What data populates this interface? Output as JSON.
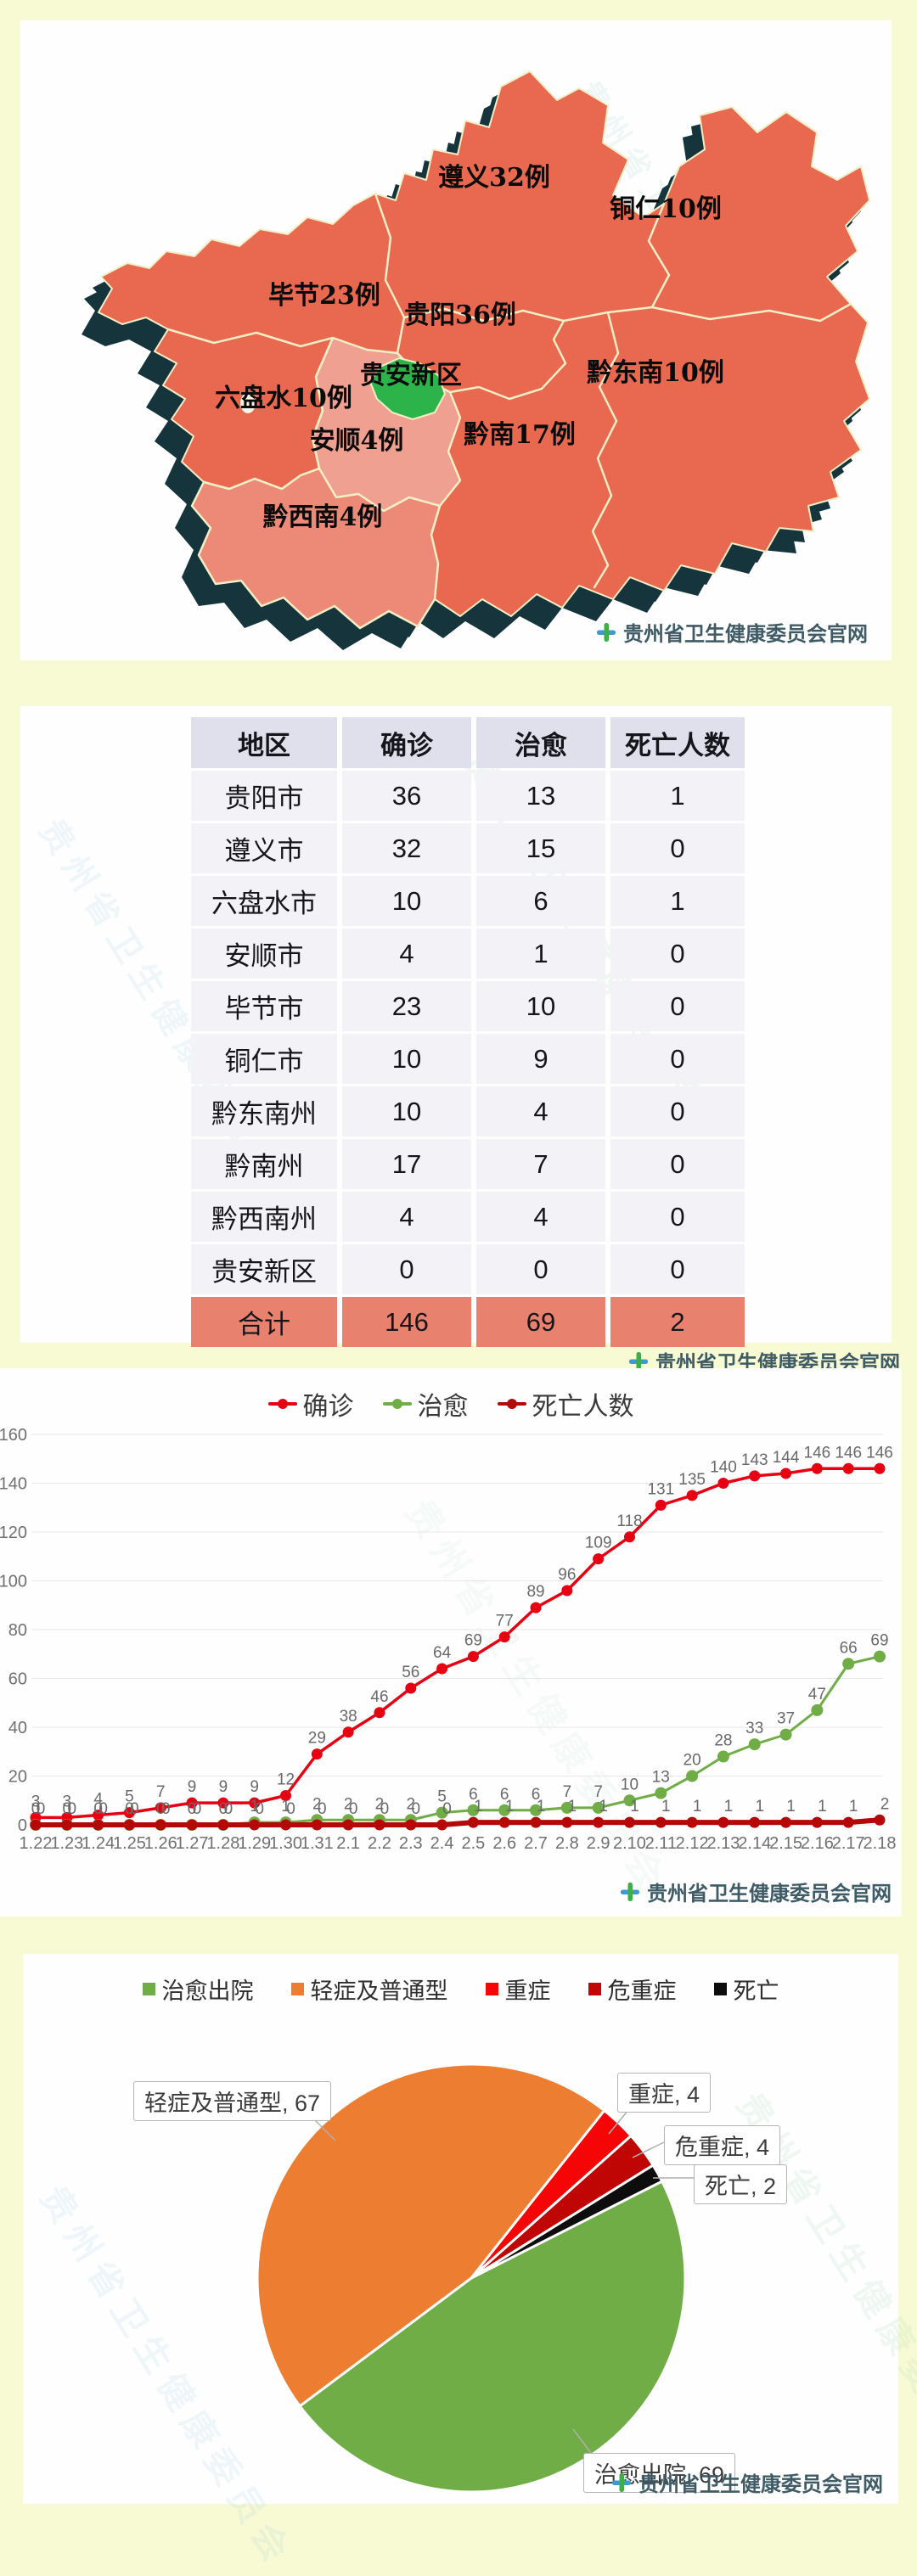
{
  "watermark": {
    "text": "贵州省卫生健康委员会官网",
    "bg_text": "贵州省卫生健康委员会",
    "icon_green": "#3fae49",
    "icon_blue": "#3d9ad1"
  },
  "map": {
    "labels": [
      {
        "region": "zunyi",
        "text": "遵义32例",
        "cases": 32
      },
      {
        "region": "tongren",
        "text": "铜仁10例",
        "cases": 10
      },
      {
        "region": "bijie",
        "text": "毕节23例",
        "cases": 23
      },
      {
        "region": "guiyang",
        "text": "贵阳36例",
        "cases": 36
      },
      {
        "region": "qiandongnan",
        "text": "黔东南10例",
        "cases": 10
      },
      {
        "region": "guian",
        "text": "贵安新区",
        "cases": 0
      },
      {
        "region": "liupanshui",
        "text": "六盘水10例",
        "cases": 10
      },
      {
        "region": "anshun",
        "text": "安顺4例",
        "cases": 4
      },
      {
        "region": "qiannan",
        "text": "黔南17例",
        "cases": 17
      },
      {
        "region": "qianxinan",
        "text": "黔西南4例",
        "cases": 4
      }
    ],
    "colors": {
      "high": "#e8694f",
      "anshun_low": "#efa090",
      "qianxinan_low": "#ec8a77",
      "guian_green": "#2cb34a",
      "extrude": "#16343c",
      "border": "#f2eec6"
    }
  },
  "table": {
    "headers": [
      "地区",
      "确诊",
      "治愈",
      "死亡人数"
    ],
    "rows": [
      [
        "贵阳市",
        "36",
        "13",
        "1"
      ],
      [
        "遵义市",
        "32",
        "15",
        "0"
      ],
      [
        "六盘水市",
        "10",
        "6",
        "1"
      ],
      [
        "安顺市",
        "4",
        "1",
        "0"
      ],
      [
        "毕节市",
        "23",
        "10",
        "0"
      ],
      [
        "铜仁市",
        "10",
        "9",
        "0"
      ],
      [
        "黔东南州",
        "10",
        "4",
        "0"
      ],
      [
        "黔南州",
        "17",
        "7",
        "0"
      ],
      [
        "黔西南州",
        "4",
        "4",
        "0"
      ],
      [
        "贵安新区",
        "0",
        "0",
        "0"
      ]
    ],
    "total": [
      "合计",
      "146",
      "69",
      "2"
    ]
  },
  "chart_data": [
    {
      "type": "line",
      "title": "",
      "categories": [
        "1.22",
        "1.23",
        "1.24",
        "1.25",
        "1.26",
        "1.27",
        "1.28",
        "1.29",
        "1.30",
        "1.31",
        "2.1",
        "2.2",
        "2.3",
        "2.4",
        "2.5",
        "2.6",
        "2.7",
        "2.8",
        "2.9",
        "2.10",
        "2.11",
        "2.12",
        "2.13",
        "2.14",
        "2.15",
        "2.16",
        "2.17",
        "2.18"
      ],
      "series": [
        {
          "name": "确诊",
          "color": "#e60012",
          "values": [
            3,
            3,
            4,
            5,
            7,
            9,
            9,
            9,
            12,
            29,
            38,
            46,
            56,
            64,
            69,
            77,
            89,
            96,
            109,
            118,
            131,
            135,
            140,
            143,
            144,
            146,
            146,
            146
          ]
        },
        {
          "name": "治愈",
          "color": "#71ad47",
          "values": [
            0,
            0,
            0,
            0,
            0,
            0,
            0,
            1,
            1,
            2,
            2,
            2,
            2,
            5,
            6,
            6,
            6,
            7,
            7,
            10,
            13,
            20,
            28,
            33,
            37,
            47,
            66,
            69
          ]
        },
        {
          "name": "死亡人数",
          "color": "#b50909",
          "values": [
            0,
            0,
            0,
            0,
            0,
            0,
            0,
            0,
            0,
            0,
            0,
            0,
            0,
            0,
            1,
            1,
            1,
            1,
            1,
            1,
            1,
            1,
            1,
            1,
            1,
            1,
            1,
            2
          ]
        }
      ],
      "ylim": [
        0,
        160
      ],
      "yticks": [
        0,
        20,
        40,
        60,
        80,
        100,
        120,
        140,
        160
      ],
      "grid": true,
      "legend_position": "top"
    },
    {
      "type": "pie",
      "title": "",
      "series": [
        {
          "name": "治愈出院",
          "value": 69,
          "color": "#70ad47",
          "label": "治愈出院, 69"
        },
        {
          "name": "轻症及普通型",
          "value": 67,
          "color": "#ed7d31",
          "label": "轻症及普通型, 67"
        },
        {
          "name": "重症",
          "value": 4,
          "color": "#f50505",
          "label": "重症, 4"
        },
        {
          "name": "危重症",
          "value": 4,
          "color": "#c00505",
          "label": "危重症, 4"
        },
        {
          "name": "死亡",
          "value": 2,
          "color": "#0d0d0d",
          "label": "死亡, 2"
        }
      ],
      "start_angle_deg": 26.9,
      "legend_position": "top"
    }
  ]
}
